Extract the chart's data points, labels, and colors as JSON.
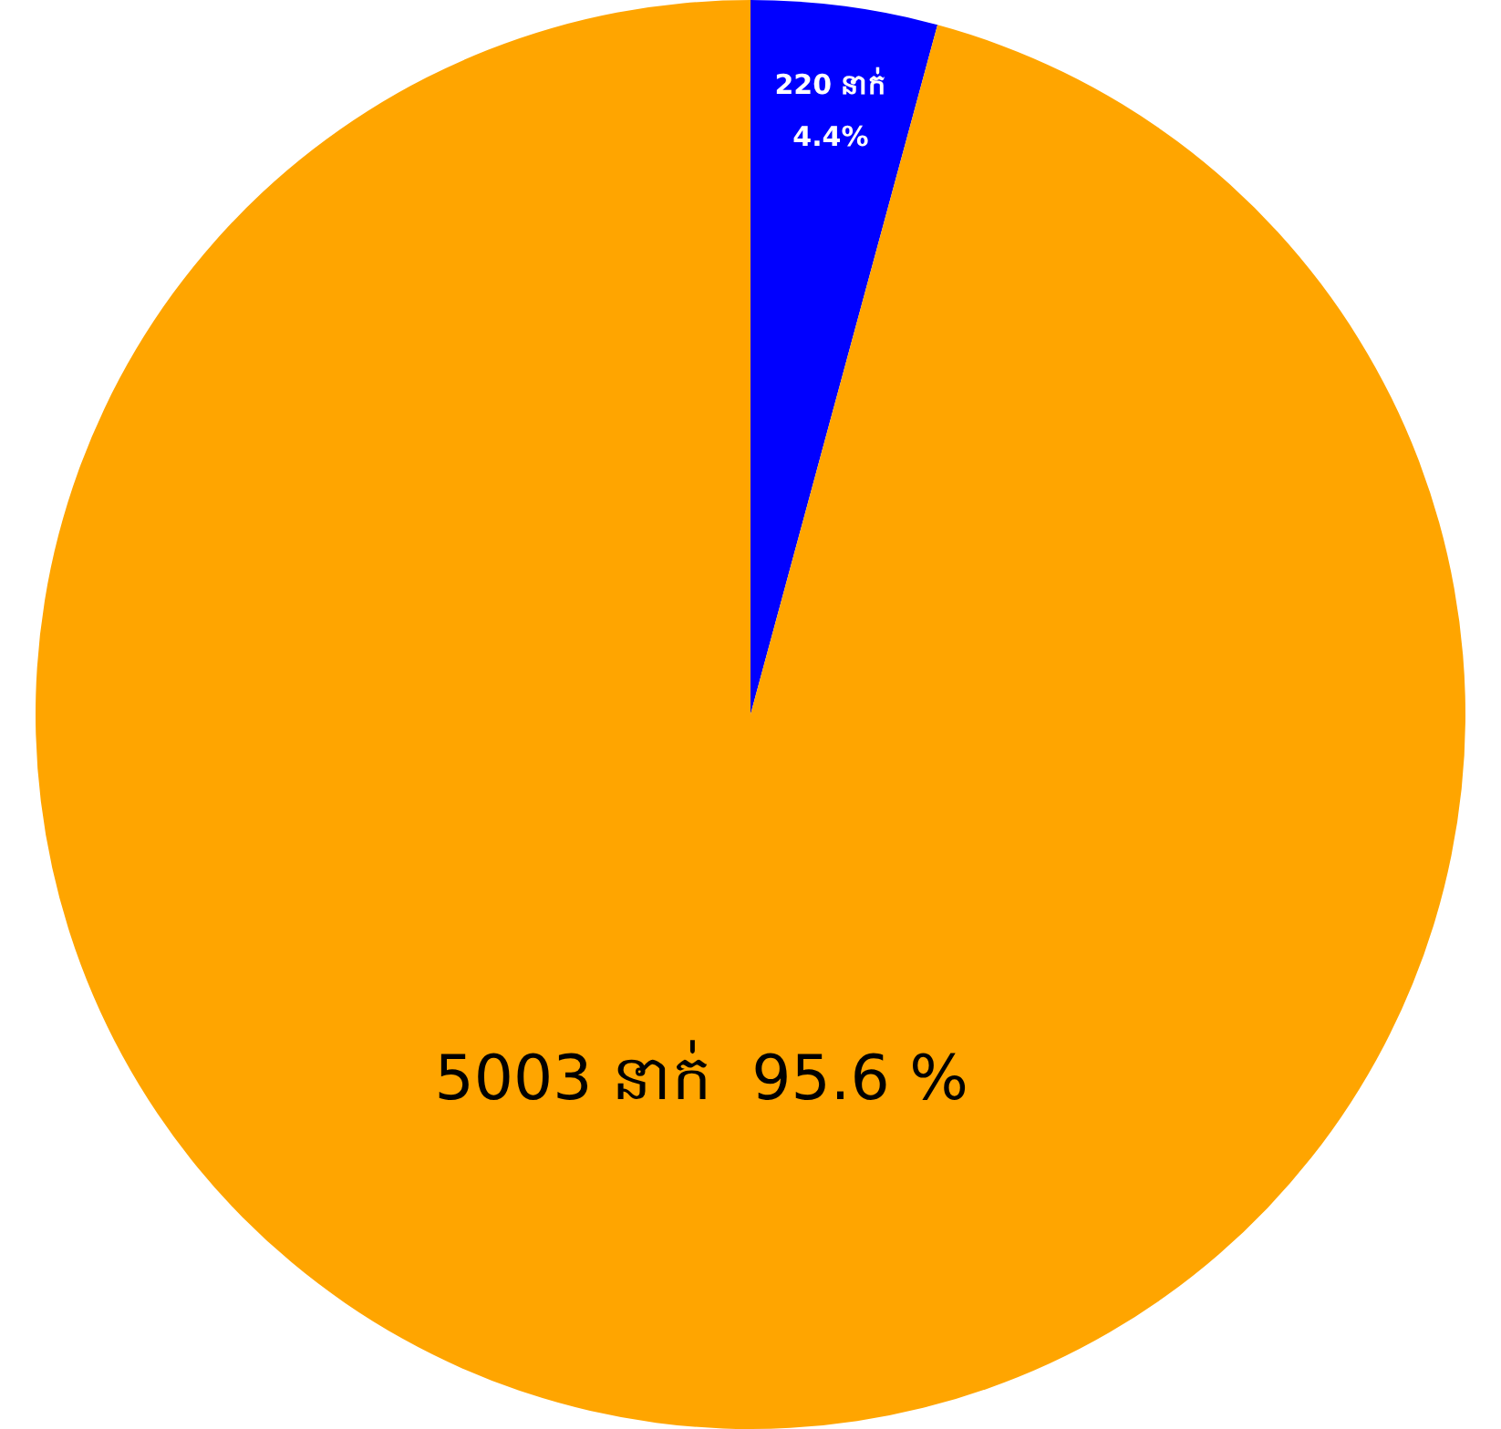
{
  "chart_data": {
    "type": "pie",
    "categories": [
      null,
      null
    ],
    "values": [
      220,
      5003
    ],
    "colors": [
      "#0000ff",
      "#ffa500"
    ],
    "value_labels": [
      "220 នាក់\n4.4%",
      "5003 នាក់  95.6 %"
    ],
    "legend": false
  }
}
